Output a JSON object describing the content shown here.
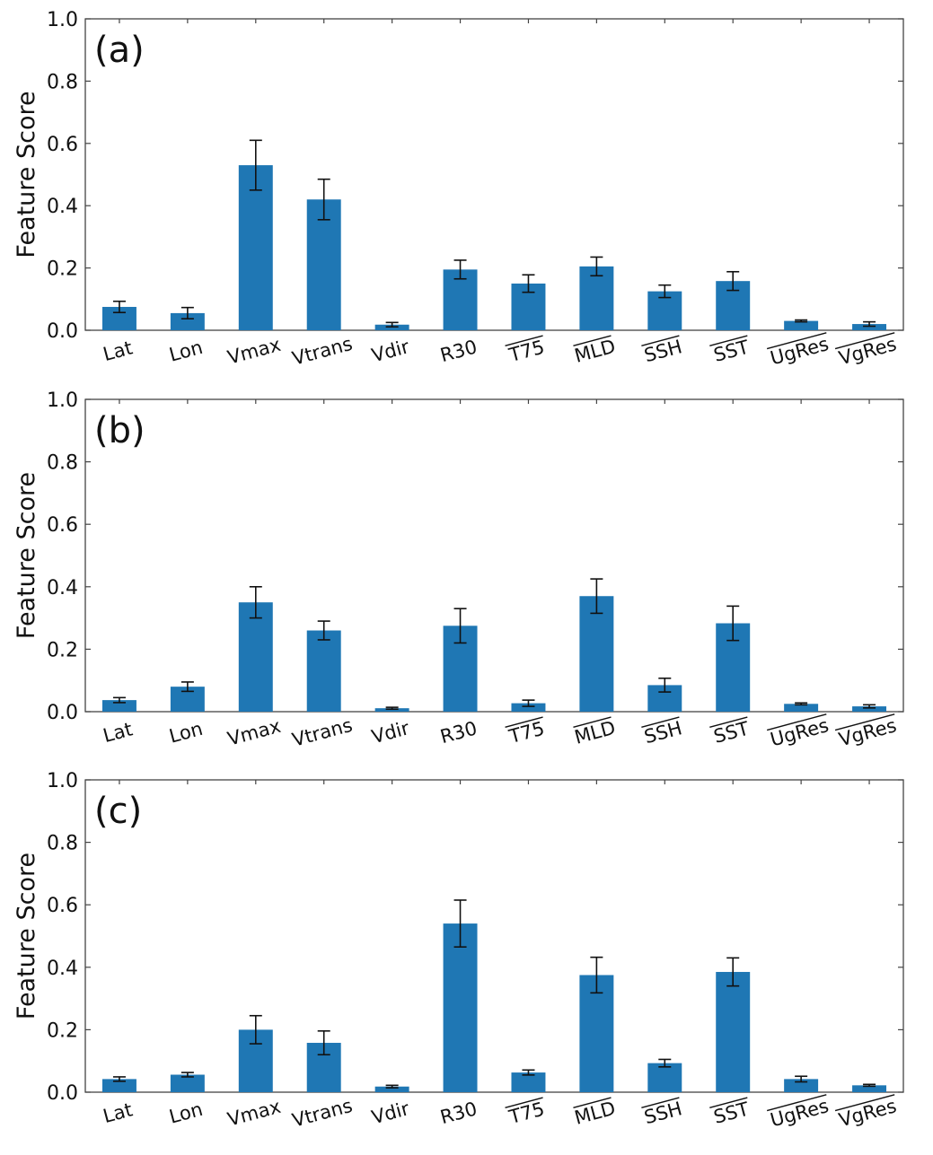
{
  "chart_data": [
    {
      "type": "bar",
      "panel_label": "(a)",
      "ylabel": "Feature Score",
      "xlabel": "",
      "ylim": [
        0.0,
        1.0
      ],
      "yticks": [
        "0.0",
        "0.2",
        "0.4",
        "0.6",
        "0.8",
        "1.0"
      ],
      "grid": false,
      "categories": [
        "Lat",
        "Lon",
        "Vmax",
        "Vtrans",
        "Vdir",
        "R30",
        "T75",
        "MLD",
        "SSH",
        "SST",
        "UgRes",
        "VgRes"
      ],
      "overlined": [
        false,
        false,
        false,
        false,
        false,
        false,
        true,
        true,
        true,
        true,
        true,
        true
      ],
      "values": [
        0.075,
        0.055,
        0.53,
        0.42,
        0.018,
        0.195,
        0.15,
        0.205,
        0.125,
        0.158,
        0.03,
        0.02
      ],
      "errors": [
        0.018,
        0.018,
        0.08,
        0.065,
        0.007,
        0.03,
        0.028,
        0.03,
        0.02,
        0.03,
        0.003,
        0.007
      ],
      "bar_color": "#1f77b4"
    },
    {
      "type": "bar",
      "panel_label": "(b)",
      "ylabel": "Feature Score",
      "xlabel": "",
      "ylim": [
        0.0,
        1.0
      ],
      "yticks": [
        "0.0",
        "0.2",
        "0.4",
        "0.6",
        "0.8",
        "1.0"
      ],
      "grid": false,
      "categories": [
        "Lat",
        "Lon",
        "Vmax",
        "Vtrans",
        "Vdir",
        "R30",
        "T75",
        "MLD",
        "SSH",
        "SST",
        "UgRes",
        "VgRes"
      ],
      "overlined": [
        false,
        false,
        false,
        false,
        false,
        false,
        true,
        true,
        true,
        true,
        true,
        true
      ],
      "values": [
        0.037,
        0.08,
        0.35,
        0.26,
        0.011,
        0.275,
        0.027,
        0.37,
        0.085,
        0.283,
        0.025,
        0.017
      ],
      "errors": [
        0.008,
        0.015,
        0.05,
        0.03,
        0.003,
        0.055,
        0.01,
        0.055,
        0.022,
        0.055,
        0.003,
        0.005
      ],
      "bar_color": "#1f77b4"
    },
    {
      "type": "bar",
      "panel_label": "(c)",
      "ylabel": "Feature Score",
      "xlabel": "",
      "ylim": [
        0.0,
        1.0
      ],
      "yticks": [
        "0.0",
        "0.2",
        "0.4",
        "0.6",
        "0.8",
        "1.0"
      ],
      "grid": false,
      "categories": [
        "Lat",
        "Lon",
        "Vmax",
        "Vtrans",
        "Vdir",
        "R30",
        "T75",
        "MLD",
        "SSH",
        "SST",
        "UgRes",
        "VgRes"
      ],
      "overlined": [
        false,
        false,
        false,
        false,
        false,
        false,
        true,
        true,
        true,
        true,
        true,
        true
      ],
      "values": [
        0.042,
        0.056,
        0.2,
        0.158,
        0.018,
        0.54,
        0.063,
        0.375,
        0.093,
        0.385,
        0.042,
        0.022
      ],
      "errors": [
        0.007,
        0.007,
        0.045,
        0.038,
        0.004,
        0.075,
        0.008,
        0.057,
        0.012,
        0.045,
        0.009,
        0.003
      ],
      "bar_color": "#1f77b4"
    }
  ]
}
